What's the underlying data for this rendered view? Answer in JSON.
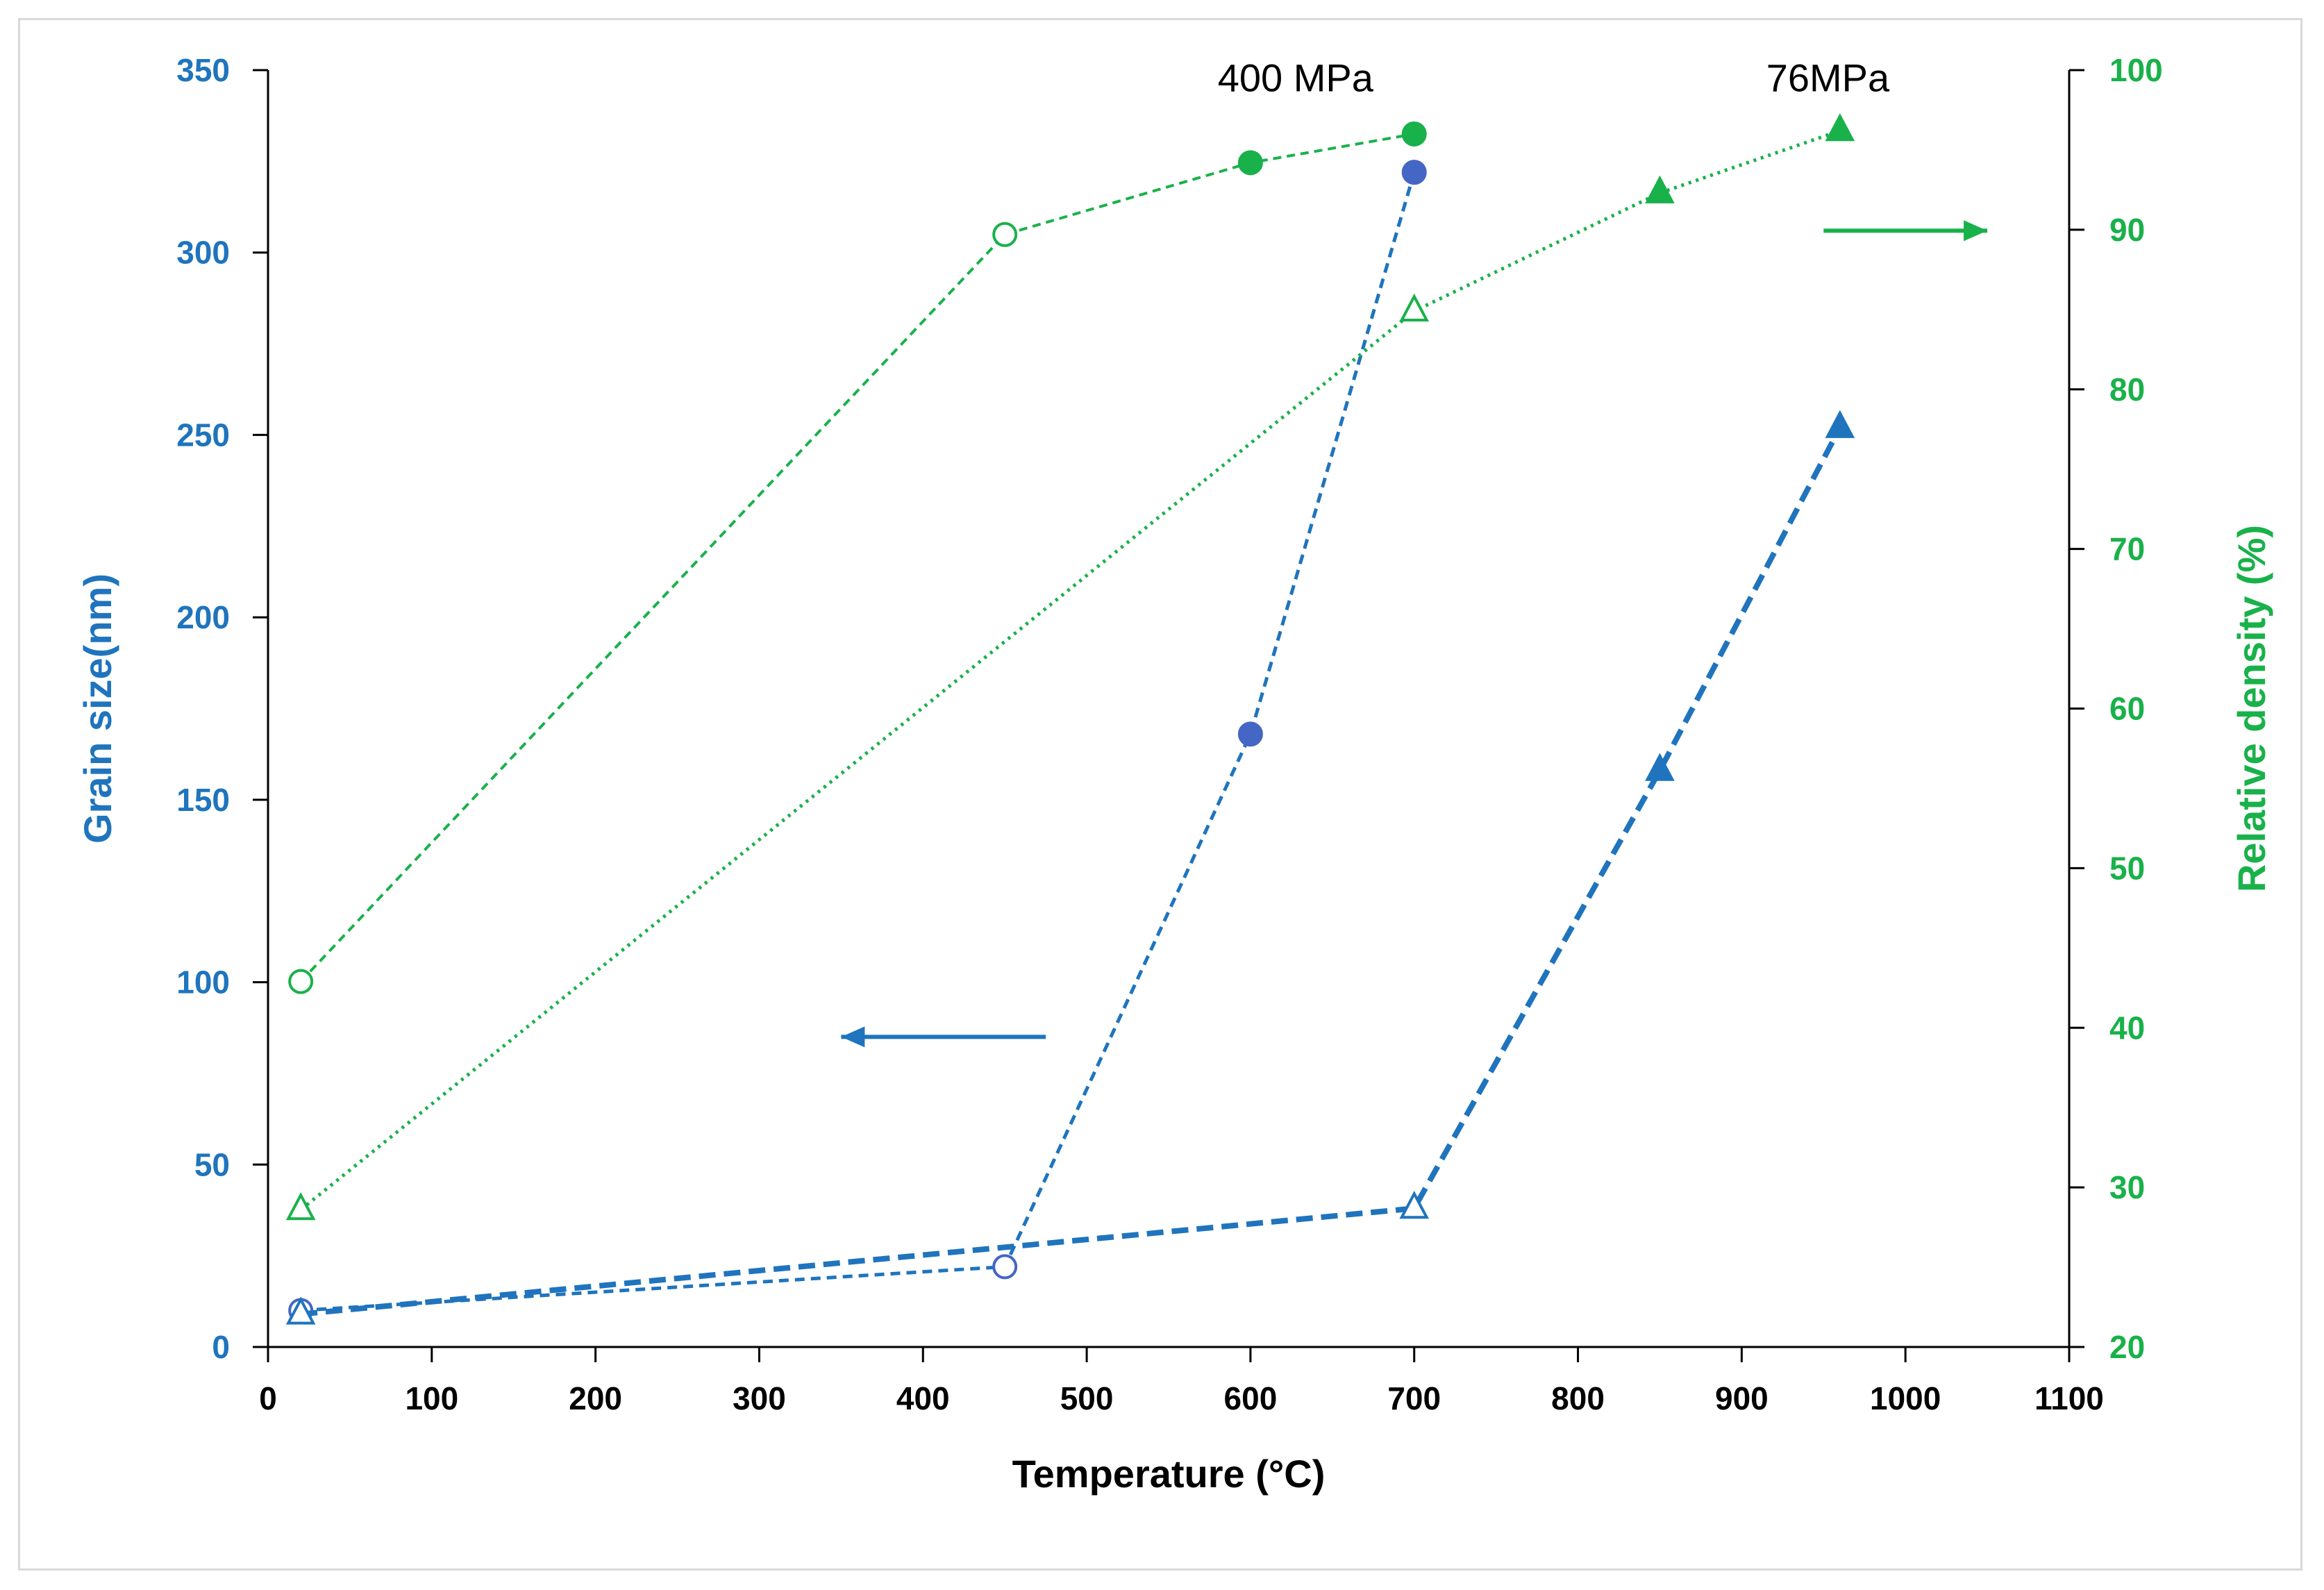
{
  "chart_data": {
    "type": "scatter",
    "title": "",
    "xlabel": "Temperature (°C)",
    "ylabel_left": "Grain size(nm)",
    "ylabel_right": "Relative density (%)",
    "xlim": [
      0,
      1100
    ],
    "ylim_left": [
      0,
      350
    ],
    "ylim_right": [
      20,
      100
    ],
    "x_ticks": [
      0,
      100,
      200,
      300,
      400,
      500,
      600,
      700,
      800,
      900,
      1000,
      1100
    ],
    "y_left_ticks": [
      0,
      50,
      100,
      150,
      200,
      250,
      300,
      350
    ],
    "y_right_ticks": [
      20,
      30,
      40,
      50,
      60,
      70,
      80,
      90,
      100
    ],
    "grid": false,
    "annotations": [
      {
        "text": "400 MPa",
        "x": 580,
        "y_left": 348
      },
      {
        "text": "76MPa",
        "x": 915,
        "y_left": 348
      }
    ],
    "arrows": [
      {
        "label": "grain-size-axis-arrow",
        "points_to": "left",
        "x_from": 475,
        "x_to": 350,
        "y_left": 85,
        "color": "#1f74bd"
      },
      {
        "label": "relative-density-axis-arrow",
        "points_to": "right",
        "x_from": 950,
        "x_to": 1050,
        "y_left": 306,
        "color": "#19b14a"
      }
    ],
    "series": [
      {
        "name": "400 MPa grain size",
        "axis": "left",
        "color": "#1f74bd",
        "line": "dashed-thin",
        "marker": "circle",
        "points": [
          {
            "x": 20,
            "y": 10,
            "filled": false
          },
          {
            "x": 450,
            "y": 22,
            "filled": false
          },
          {
            "x": 600,
            "y": 168,
            "filled": true
          },
          {
            "x": 700,
            "y": 322,
            "filled": true
          }
        ]
      },
      {
        "name": "76MPa grain size",
        "axis": "left",
        "color": "#1f74bd",
        "line": "dashed-thick",
        "marker": "triangle",
        "points": [
          {
            "x": 20,
            "y": 9,
            "filled": false
          },
          {
            "x": 700,
            "y": 38,
            "filled": false
          },
          {
            "x": 850,
            "y": 158,
            "filled": true
          },
          {
            "x": 960,
            "y": 252,
            "filled": true
          }
        ]
      },
      {
        "name": "400 MPa relative density",
        "axis": "right",
        "color": "#19b14a",
        "line": "dashed",
        "marker": "circle",
        "points": [
          {
            "x": 20,
            "y": 42.9,
            "filled": false
          },
          {
            "x": 450,
            "y": 89.7,
            "filled": false
          },
          {
            "x": 600,
            "y": 94.2,
            "filled": true
          },
          {
            "x": 700,
            "y": 96.0,
            "filled": true
          }
        ]
      },
      {
        "name": "76MPa relative density",
        "axis": "right",
        "color": "#19b14a",
        "line": "dotted",
        "marker": "triangle",
        "points": [
          {
            "x": 20,
            "y": 28.6,
            "filled": false
          },
          {
            "x": 700,
            "y": 84.9,
            "filled": false
          },
          {
            "x": 850,
            "y": 92.3,
            "filled": true
          },
          {
            "x": 960,
            "y": 96.2,
            "filled": true
          }
        ]
      }
    ]
  }
}
